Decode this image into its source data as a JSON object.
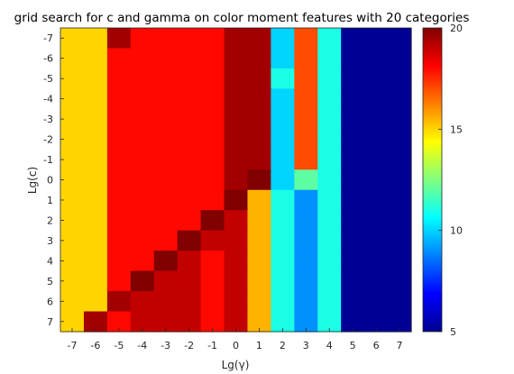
{
  "chart_data": {
    "type": "heatmap",
    "title": "grid search for c and gamma on color moment features with 20 categories",
    "xlabel": "Lg(γ)",
    "ylabel": "Lg(c)",
    "x_ticks": [
      "-7",
      "-6",
      "-5",
      "-4",
      "-3",
      "-2",
      "-1",
      "0",
      "1",
      "2",
      "3",
      "4",
      "5",
      "6",
      "7"
    ],
    "y_ticks": [
      "-7",
      "-6",
      "-5",
      "-4",
      "-3",
      "-2",
      "-1",
      "0",
      "1",
      "2",
      "3",
      "4",
      "5",
      "6",
      "7"
    ],
    "colorbar": {
      "min": 5,
      "max": 20,
      "ticks": [
        "5",
        "10",
        "15",
        "20"
      ],
      "colormap": "jet"
    },
    "values": [
      [
        15,
        15,
        19.5,
        18,
        18,
        18,
        18,
        19.5,
        19.5,
        10,
        17,
        11,
        5.3,
        5.3,
        5.3
      ],
      [
        15,
        15,
        18,
        18,
        18,
        18,
        18,
        19.5,
        19.5,
        10,
        17,
        11,
        5.3,
        5.3,
        5.3
      ],
      [
        15,
        15,
        18,
        18,
        18,
        18,
        18,
        19.5,
        19.5,
        11,
        17,
        11,
        5.3,
        5.3,
        5.3
      ],
      [
        15,
        15,
        18,
        18,
        18,
        18,
        18,
        19.5,
        19.5,
        10,
        17,
        11,
        5.3,
        5.3,
        5.3
      ],
      [
        15,
        15,
        18,
        18,
        18,
        18,
        18,
        19.5,
        19.5,
        10,
        17,
        11,
        5.3,
        5.3,
        5.3
      ],
      [
        15,
        15,
        18,
        18,
        18,
        18,
        18,
        19.5,
        19.5,
        10,
        17,
        11,
        5.3,
        5.3,
        5.3
      ],
      [
        15,
        15,
        18,
        18,
        18,
        18,
        18,
        19.5,
        19.5,
        10,
        17,
        11,
        5.3,
        5.3,
        5.3
      ],
      [
        15,
        15,
        18,
        18,
        18,
        18,
        18,
        19.5,
        20,
        10,
        12,
        11,
        5.3,
        5.3,
        5.3
      ],
      [
        15,
        15,
        18,
        18,
        18,
        18,
        18,
        20,
        15.5,
        11,
        9,
        11,
        5.3,
        5.3,
        5.3
      ],
      [
        15,
        15,
        18,
        18,
        18,
        18,
        20,
        19,
        15.5,
        11,
        9,
        11,
        5.3,
        5.3,
        5.3
      ],
      [
        15,
        15,
        18,
        18,
        18,
        20,
        19,
        19,
        15.5,
        11,
        9,
        11,
        5.3,
        5.3,
        5.3
      ],
      [
        15,
        15,
        18,
        18,
        20,
        19,
        18,
        19,
        15.5,
        11,
        9,
        11,
        5.3,
        5.3,
        5.3
      ],
      [
        15,
        15,
        18,
        20,
        19,
        19,
        18,
        19,
        15.5,
        11,
        9,
        11,
        5.3,
        5.3,
        5.3
      ],
      [
        15,
        15,
        19.5,
        19,
        19,
        19,
        18,
        19,
        15.5,
        11,
        9,
        11,
        5.3,
        5.3,
        5.3
      ],
      [
        15,
        19.5,
        18,
        19,
        19,
        19,
        18,
        19,
        15.5,
        11,
        9,
        11,
        5.3,
        5.3,
        5.3
      ]
    ]
  }
}
